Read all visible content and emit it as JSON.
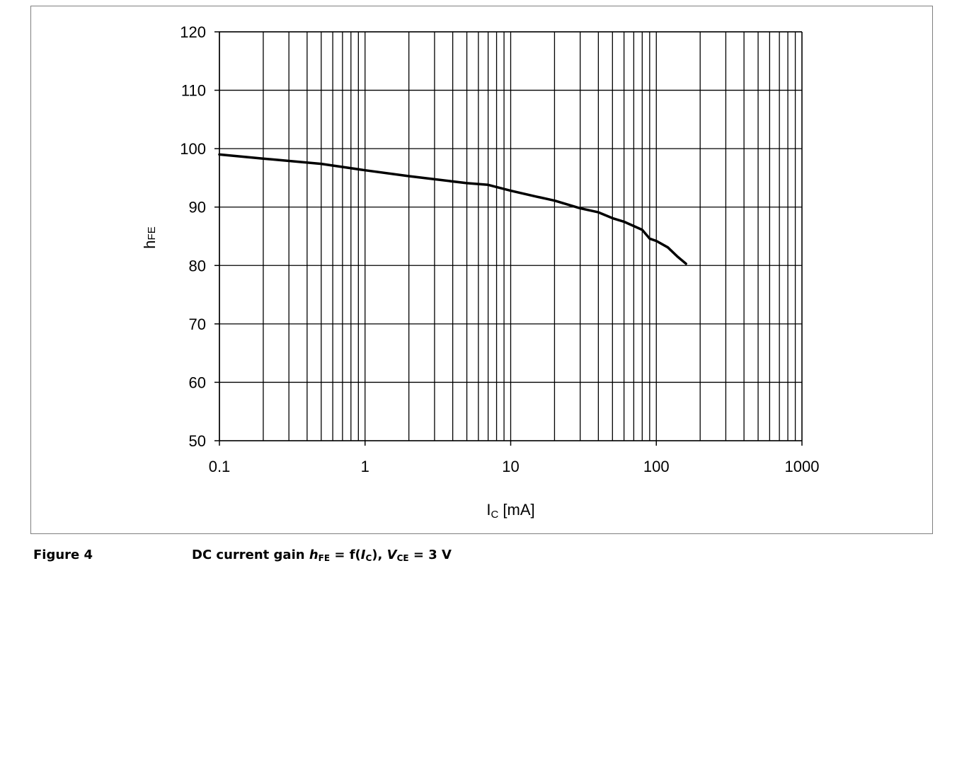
{
  "chart_data": {
    "type": "line",
    "x_scale": "log",
    "xlabel_main": "I",
    "xlabel_sub": "C",
    "xlabel_unit": "[mA]",
    "ylabel_main": "h",
    "ylabel_sub": "FE",
    "xlim": [
      0.1,
      1000
    ],
    "ylim": [
      50,
      120
    ],
    "x_ticks": [
      0.1,
      1,
      10,
      100,
      1000
    ],
    "x_tick_labels": [
      "0.1",
      "1",
      "10",
      "100",
      "1000"
    ],
    "y_ticks": [
      50,
      60,
      70,
      80,
      90,
      100,
      110,
      120
    ],
    "y_tick_labels": [
      "50",
      "60",
      "70",
      "80",
      "90",
      "100",
      "110",
      "120"
    ],
    "grid": true,
    "series": [
      {
        "x": [
          0.1,
          0.2,
          0.5,
          1,
          2,
          5,
          7,
          10,
          15,
          20,
          30,
          40,
          50,
          60,
          80,
          90,
          100,
          120,
          140,
          160
        ],
        "y": [
          99,
          98.3,
          97.4,
          96.3,
          95.3,
          94.1,
          93.8,
          92.8,
          91.8,
          91.1,
          89.8,
          89.1,
          88.1,
          87.5,
          86.1,
          84.6,
          84.2,
          83.1,
          81.5,
          80.3
        ]
      }
    ]
  },
  "caption": {
    "figure_label": "Figure 4",
    "text_1": "DC current gain ",
    "h": "h",
    "h_sub": "FE",
    "text_2": " = f(",
    "i": "I",
    "i_sub": "C",
    "text_3": "), ",
    "v": "V",
    "v_sub": "CE",
    "text_4": " = 3 V"
  }
}
